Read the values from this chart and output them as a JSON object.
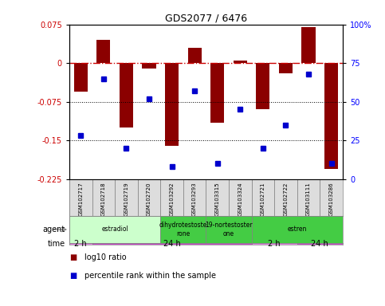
{
  "title": "GDS2077 / 6476",
  "samples": [
    "GSM102717",
    "GSM102718",
    "GSM102719",
    "GSM102720",
    "GSM103292",
    "GSM103293",
    "GSM103315",
    "GSM103324",
    "GSM102721",
    "GSM102722",
    "GSM103111",
    "GSM103286"
  ],
  "log10_ratio": [
    -0.055,
    0.045,
    -0.125,
    -0.01,
    -0.16,
    0.03,
    -0.115,
    0.005,
    -0.09,
    -0.02,
    0.07,
    -0.205
  ],
  "percentile": [
    28,
    65,
    20,
    52,
    8,
    57,
    10,
    45,
    20,
    35,
    68,
    10
  ],
  "ylim_left": [
    -0.225,
    0.075
  ],
  "ylim_right": [
    0,
    100
  ],
  "yticks_left": [
    0.075,
    0,
    -0.075,
    -0.15,
    -0.225
  ],
  "yticks_right": [
    100,
    75,
    50,
    25,
    0
  ],
  "hline_dotted": [
    -0.075,
    -0.15
  ],
  "bar_color": "#8B0000",
  "dot_color": "#0000CD",
  "agent_groups": [
    {
      "label": "estradiol",
      "start": 0,
      "end": 4,
      "color": "#CCFFCC"
    },
    {
      "label": "dihydrotestoste\nrone",
      "start": 4,
      "end": 6,
      "color": "#44CC44"
    },
    {
      "label": "19-nortestoster\none",
      "start": 6,
      "end": 8,
      "color": "#44CC44"
    },
    {
      "label": "estren",
      "start": 8,
      "end": 12,
      "color": "#44CC44"
    }
  ],
  "time_groups": [
    {
      "label": "2 h",
      "start": 0,
      "end": 1,
      "color": "#EE82EE"
    },
    {
      "label": "24 h",
      "start": 1,
      "end": 8,
      "color": "#CC44CC"
    },
    {
      "label": "2 h",
      "start": 8,
      "end": 10,
      "color": "#EE82EE"
    },
    {
      "label": "24 h",
      "start": 10,
      "end": 12,
      "color": "#CC44CC"
    }
  ],
  "legend_items": [
    {
      "label": "log10 ratio",
      "color": "#8B0000"
    },
    {
      "label": "percentile rank within the sample",
      "color": "#0000CD"
    }
  ]
}
